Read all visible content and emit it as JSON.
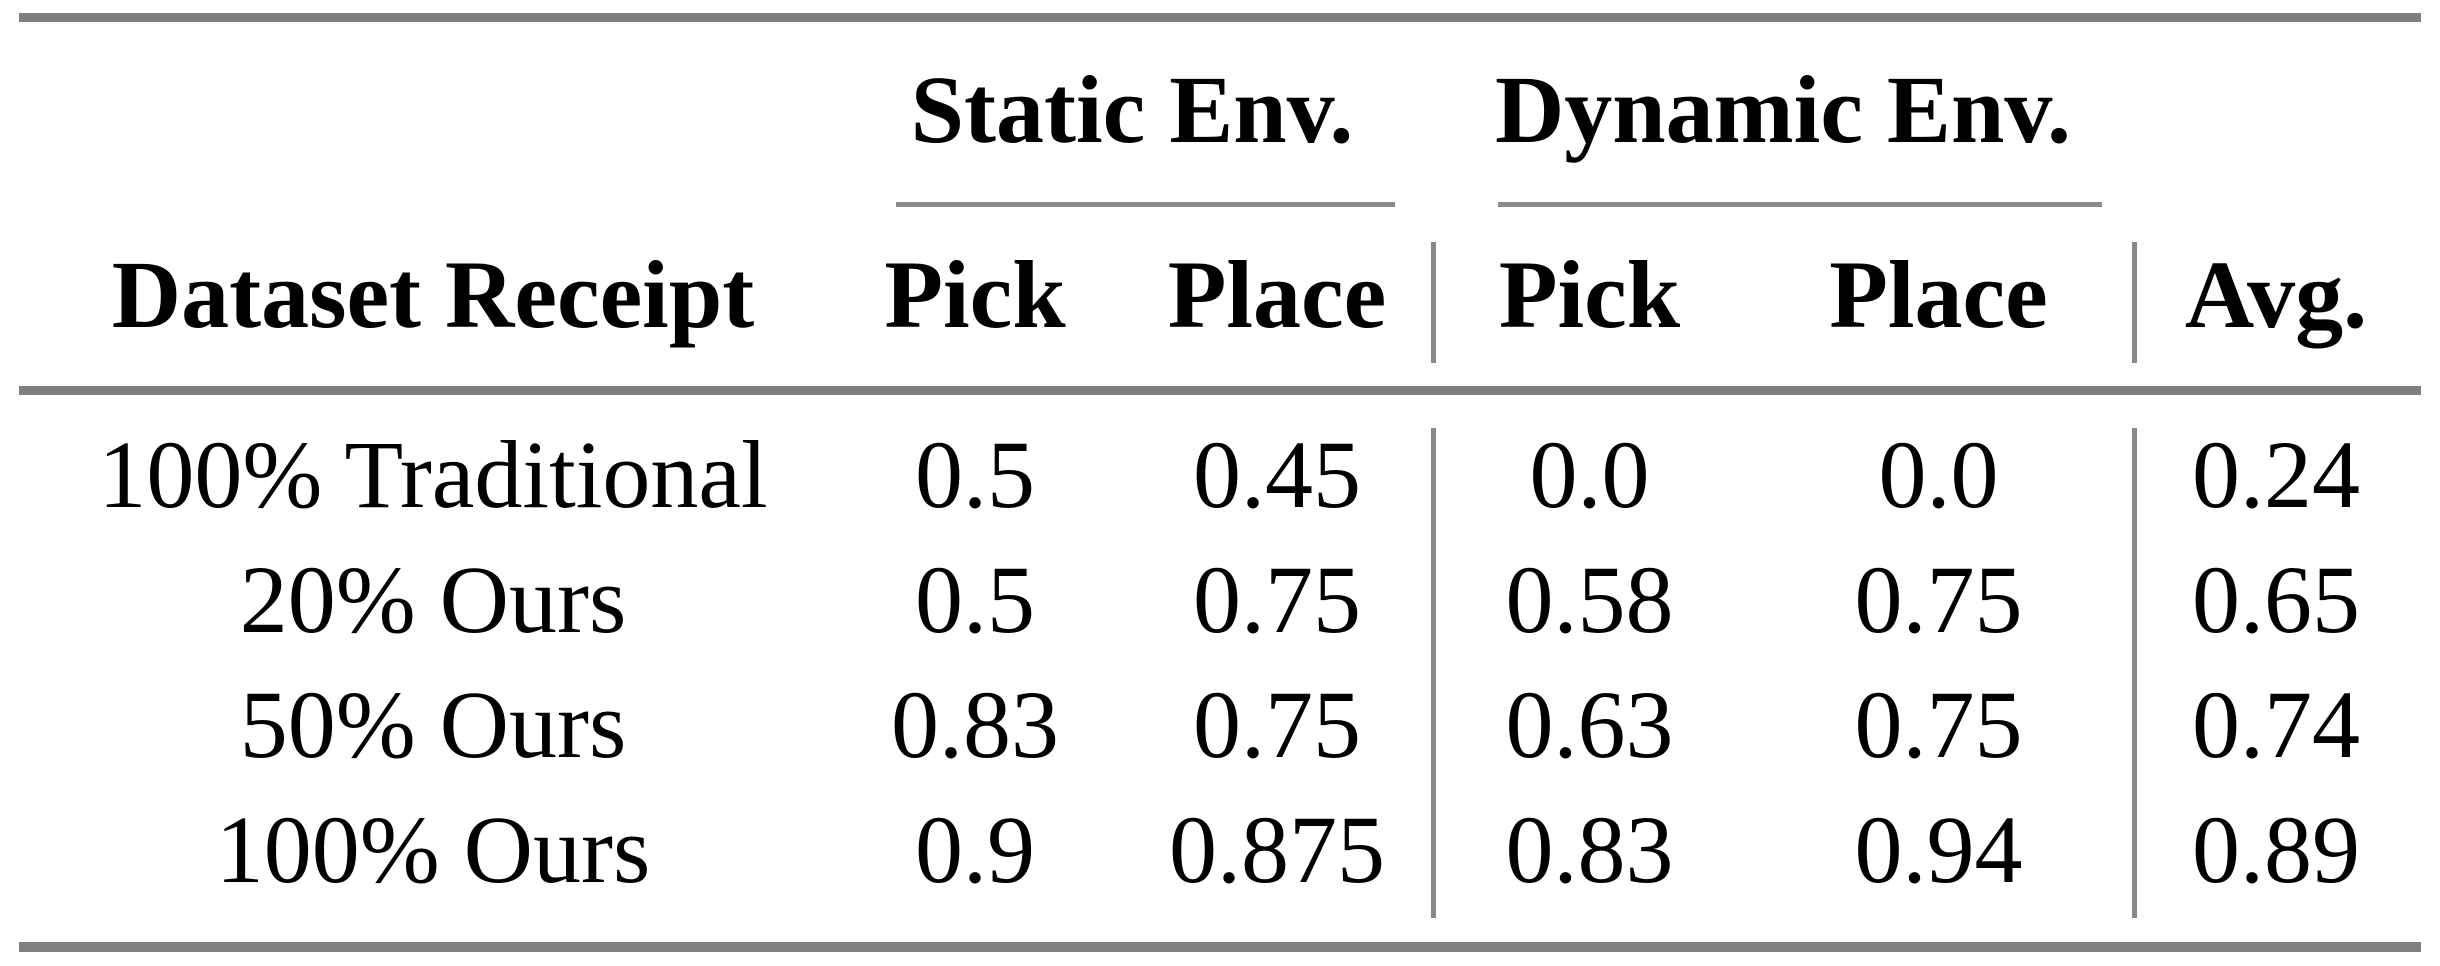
{
  "table": {
    "groups": [
      {
        "label": "Static Env."
      },
      {
        "label": "Dynamic Env."
      }
    ],
    "columns": [
      "Dataset Receipt",
      "Pick",
      "Place",
      "Pick",
      "Place",
      "Avg."
    ],
    "rows": [
      {
        "label": "100% Traditional",
        "values": [
          "0.5",
          "0.45",
          "0.0",
          "0.0",
          "0.24"
        ]
      },
      {
        "label": "20% Ours",
        "values": [
          "0.5",
          "0.75",
          "0.58",
          "0.75",
          "0.65"
        ]
      },
      {
        "label": "50% Ours",
        "values": [
          "0.83",
          "0.75",
          "0.63",
          "0.75",
          "0.74"
        ]
      },
      {
        "label": "100% Ours",
        "values": [
          "0.9",
          "0.875",
          "0.83",
          "0.94",
          "0.89"
        ]
      }
    ],
    "rule_color_thick": "#7f7f7f",
    "rule_color_thin": "#8a8a8a"
  },
  "chart_data": {
    "type": "table",
    "column_groups": [
      {
        "label": "Static Env.",
        "span": [
          "Pick",
          "Place"
        ]
      },
      {
        "label": "Dynamic Env.",
        "span": [
          "Pick",
          "Place"
        ]
      }
    ],
    "columns": [
      "Dataset Receipt",
      "Static Pick",
      "Static Place",
      "Dynamic Pick",
      "Dynamic Place",
      "Avg."
    ],
    "rows": [
      [
        "100% Traditional",
        0.5,
        0.45,
        0.0,
        0.0,
        0.24
      ],
      [
        "20% Ours",
        0.5,
        0.75,
        0.58,
        0.75,
        0.65
      ],
      [
        "50% Ours",
        0.83,
        0.75,
        0.63,
        0.75,
        0.74
      ],
      [
        "100% Ours",
        0.9,
        0.875,
        0.83,
        0.94,
        0.89
      ]
    ]
  }
}
